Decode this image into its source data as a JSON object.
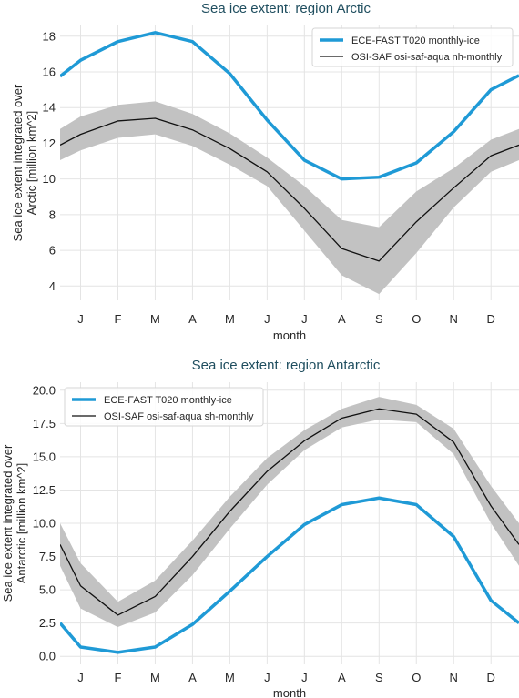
{
  "chart_data": [
    {
      "type": "line",
      "title": "Sea ice extent: region Arctic",
      "xlabel": "month",
      "ylabel": "Sea ice extent integrated over Arctic [million km^2]",
      "ylabel_lines": [
        "Sea ice extent integrated over",
        "Arctic [million km^2]"
      ],
      "categories": [
        "J",
        "F",
        "M",
        "A",
        "M",
        "J",
        "J",
        "A",
        "S",
        "O",
        "N",
        "D"
      ],
      "ylim": [
        3.2,
        18.6
      ],
      "yticks": [
        4,
        6,
        8,
        10,
        12,
        14,
        16,
        18
      ],
      "grid": true,
      "legend": "top-right",
      "series": [
        {
          "name": "ECE-FAST T020 monthly-ice",
          "color": "#1f9ad6",
          "values": [
            16.65,
            17.7,
            18.2,
            17.7,
            15.9,
            13.3,
            11.05,
            10.0,
            10.1,
            10.9,
            12.65,
            15.0
          ],
          "edge_values": [
            15.75,
            15.8
          ]
        },
        {
          "name": "OSI-SAF osi-saf-aqua nh-monthly",
          "color": "#111111",
          "values": [
            12.5,
            13.25,
            13.4,
            12.75,
            11.7,
            10.4,
            8.35,
            6.1,
            5.4,
            7.6,
            9.5,
            11.3
          ],
          "edge_values": [
            11.9,
            11.9
          ],
          "band_upper": [
            13.5,
            14.15,
            14.35,
            13.65,
            12.55,
            11.2,
            9.6,
            7.7,
            7.3,
            9.3,
            10.6,
            12.2
          ],
          "band_lower": [
            11.6,
            12.3,
            12.5,
            11.85,
            10.8,
            9.6,
            7.1,
            4.6,
            3.55,
            5.85,
            8.4,
            10.4
          ],
          "band_edge_upper": [
            12.8,
            12.8
          ],
          "band_edge_lower": [
            11.05,
            11.05
          ],
          "band_color": "#c2c2c2"
        }
      ]
    },
    {
      "type": "line",
      "title": "Sea ice extent: region Antarctic",
      "xlabel": "month",
      "ylabel": "Sea ice extent integrated over Antarctic [million km^2]",
      "ylabel_lines": [
        "Sea ice extent integrated over",
        "Antarctic [million km^2]"
      ],
      "categories": [
        "J",
        "F",
        "M",
        "A",
        "M",
        "J",
        "J",
        "A",
        "S",
        "O",
        "N",
        "D"
      ],
      "ylim": [
        -0.6,
        20.6
      ],
      "yticks": [
        "0.0",
        "2.5",
        "5.0",
        "7.5",
        "10.0",
        "12.5",
        "15.0",
        "17.5",
        "20.0"
      ],
      "grid": true,
      "legend": "top-left",
      "series": [
        {
          "name": "ECE-FAST T020 monthly-ice",
          "color": "#1f9ad6",
          "values": [
            0.7,
            0.3,
            0.7,
            2.4,
            4.9,
            7.5,
            9.9,
            11.4,
            11.9,
            11.4,
            9.0,
            4.2
          ],
          "edge_values": [
            2.5,
            2.5
          ]
        },
        {
          "name": "OSI-SAF osi-saf-aqua sh-monthly",
          "color": "#111111",
          "values": [
            5.3,
            3.1,
            4.5,
            7.5,
            10.9,
            13.9,
            16.2,
            17.9,
            18.6,
            18.2,
            16.1,
            11.3
          ],
          "edge_values": [
            8.4,
            8.4
          ],
          "band_upper": [
            7.0,
            4.1,
            5.7,
            8.7,
            12.0,
            14.9,
            17.0,
            18.6,
            19.5,
            18.9,
            17.1,
            12.8
          ],
          "band_lower": [
            3.6,
            2.2,
            3.3,
            6.1,
            9.6,
            12.9,
            15.5,
            17.2,
            17.8,
            17.6,
            15.2,
            10.0
          ],
          "band_edge_upper": [
            10.0,
            10.0
          ],
          "band_edge_lower": [
            6.8,
            6.8
          ],
          "band_color": "#c2c2c2"
        }
      ]
    }
  ]
}
